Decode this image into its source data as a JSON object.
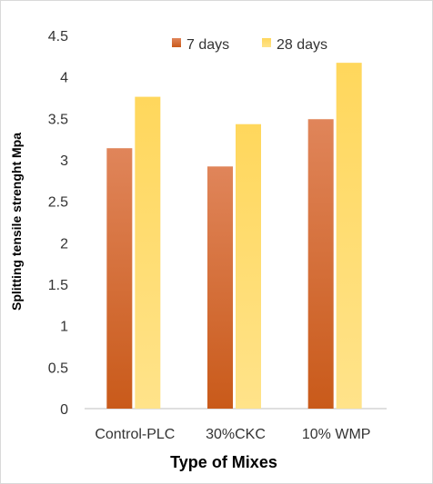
{
  "chart_data": {
    "type": "bar",
    "categories": [
      "Control-PLC",
      "30%CKC",
      "10% WMP"
    ],
    "series": [
      {
        "name": "7 days",
        "values": [
          3.14,
          2.92,
          3.49
        ],
        "color": "#d96a2b"
      },
      {
        "name": "28 days",
        "values": [
          3.76,
          3.43,
          4.17
        ],
        "color": "#ffd966"
      }
    ],
    "y_ticks": [
      "0",
      "0.5",
      "1",
      "1.5",
      "2",
      "2.5",
      "3",
      "3.5",
      "4",
      "4.5"
    ],
    "ylim": [
      0,
      4.5
    ],
    "xlabel": "Type of Mixes",
    "ylabel": "Splitting tensile strenght Mpa",
    "legend_position": "top",
    "grid": false
  }
}
